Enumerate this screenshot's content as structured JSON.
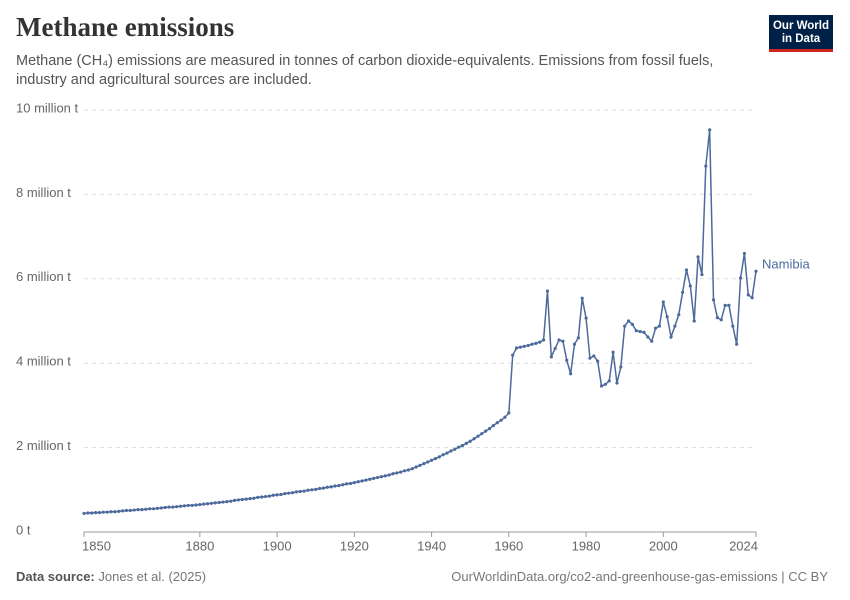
{
  "chart_data": {
    "type": "line",
    "title": "Methane emissions",
    "subtitle": "Methane (CH₄) emissions are measured in tonnes of carbon dioxide-equivalents. Emissions from fossil fuels, industry and agricultural sources are included.",
    "logo": [
      "Our World",
      "in Data"
    ],
    "source_label": "Data source:",
    "source": "Jones et al. (2025)",
    "url": "OurWorldinData.org/co2-and-greenhouse-gas-emissions | CC BY",
    "xlim": [
      1850,
      2024
    ],
    "xticks": [
      1850,
      1880,
      1900,
      1920,
      1940,
      1960,
      1980,
      2000,
      2024
    ],
    "ylim": [
      0,
      10000000
    ],
    "yticks": [
      {
        "value": 0,
        "label": "0 t"
      },
      {
        "value": 2000000,
        "label": "2 million t"
      },
      {
        "value": 4000000,
        "label": "4 million t"
      },
      {
        "value": 6000000,
        "label": "6 million t"
      },
      {
        "value": 8000000,
        "label": "8 million t"
      },
      {
        "value": 10000000,
        "label": "10 million t"
      }
    ],
    "grid": true,
    "x": [
      1850,
      1851,
      1852,
      1853,
      1854,
      1855,
      1856,
      1857,
      1858,
      1859,
      1860,
      1861,
      1862,
      1863,
      1864,
      1865,
      1866,
      1867,
      1868,
      1869,
      1870,
      1871,
      1872,
      1873,
      1874,
      1875,
      1876,
      1877,
      1878,
      1879,
      1880,
      1881,
      1882,
      1883,
      1884,
      1885,
      1886,
      1887,
      1888,
      1889,
      1890,
      1891,
      1892,
      1893,
      1894,
      1895,
      1896,
      1897,
      1898,
      1899,
      1900,
      1901,
      1902,
      1903,
      1904,
      1905,
      1906,
      1907,
      1908,
      1909,
      1910,
      1911,
      1912,
      1913,
      1914,
      1915,
      1916,
      1917,
      1918,
      1919,
      1920,
      1921,
      1922,
      1923,
      1924,
      1925,
      1926,
      1927,
      1928,
      1929,
      1930,
      1931,
      1932,
      1933,
      1934,
      1935,
      1936,
      1937,
      1938,
      1939,
      1940,
      1941,
      1942,
      1943,
      1944,
      1945,
      1946,
      1947,
      1948,
      1949,
      1950,
      1951,
      1952,
      1953,
      1954,
      1955,
      1956,
      1957,
      1958,
      1959,
      1960,
      1961,
      1962,
      1963,
      1964,
      1965,
      1966,
      1967,
      1968,
      1969,
      1970,
      1971,
      1972,
      1973,
      1974,
      1975,
      1976,
      1977,
      1978,
      1979,
      1980,
      1981,
      1982,
      1983,
      1984,
      1985,
      1986,
      1987,
      1988,
      1989,
      1990,
      1991,
      1992,
      1993,
      1994,
      1995,
      1996,
      1997,
      1998,
      1999,
      2000,
      2001,
      2002,
      2003,
      2004,
      2005,
      2006,
      2007,
      2008,
      2009,
      2010,
      2011,
      2012,
      2013,
      2014,
      2015,
      2016,
      2017,
      2018,
      2019,
      2020,
      2021,
      2022,
      2023,
      2024
    ],
    "series": [
      {
        "name": "Namibia",
        "color": "#4c6a9c",
        "values": [
          440000,
          450000,
          450000,
          460000,
          460000,
          470000,
          470000,
          480000,
          480000,
          490000,
          500000,
          510000,
          510000,
          520000,
          530000,
          530000,
          540000,
          550000,
          550000,
          560000,
          570000,
          580000,
          590000,
          590000,
          600000,
          610000,
          620000,
          630000,
          630000,
          640000,
          650000,
          660000,
          670000,
          680000,
          690000,
          700000,
          710000,
          720000,
          730000,
          750000,
          760000,
          770000,
          780000,
          790000,
          800000,
          820000,
          830000,
          840000,
          850000,
          870000,
          880000,
          890000,
          910000,
          920000,
          930000,
          950000,
          960000,
          970000,
          990000,
          1000000,
          1010000,
          1030000,
          1040000,
          1060000,
          1070000,
          1090000,
          1100000,
          1120000,
          1140000,
          1150000,
          1170000,
          1190000,
          1210000,
          1230000,
          1250000,
          1270000,
          1290000,
          1310000,
          1330000,
          1350000,
          1380000,
          1400000,
          1420000,
          1450000,
          1470000,
          1500000,
          1540000,
          1580000,
          1620000,
          1660000,
          1700000,
          1740000,
          1780000,
          1830000,
          1870000,
          1920000,
          1960000,
          2010000,
          2050000,
          2100000,
          2150000,
          2210000,
          2270000,
          2330000,
          2390000,
          2450000,
          2520000,
          2590000,
          2650000,
          2720000,
          2820000,
          4190000,
          4360000,
          4380000,
          4400000,
          4420000,
          4450000,
          4470000,
          4500000,
          4550000,
          5710000,
          4150000,
          4350000,
          4550000,
          4520000,
          4070000,
          3750000,
          4450000,
          4600000,
          5540000,
          5070000,
          4120000,
          4170000,
          4050000,
          3460000,
          3500000,
          3580000,
          4260000,
          3530000,
          3910000,
          4880000,
          5000000,
          4920000,
          4770000,
          4750000,
          4730000,
          4620000,
          4520000,
          4830000,
          4880000,
          5450000,
          5100000,
          4620000,
          4880000,
          5150000,
          5680000,
          6210000,
          5830000,
          5000000,
          6520000,
          6100000,
          8670000,
          9530000,
          5500000,
          5080000,
          5030000,
          5370000,
          5370000,
          4880000,
          4450000,
          6020000,
          6600000,
          5620000,
          5550000,
          6180000
        ]
      }
    ]
  }
}
